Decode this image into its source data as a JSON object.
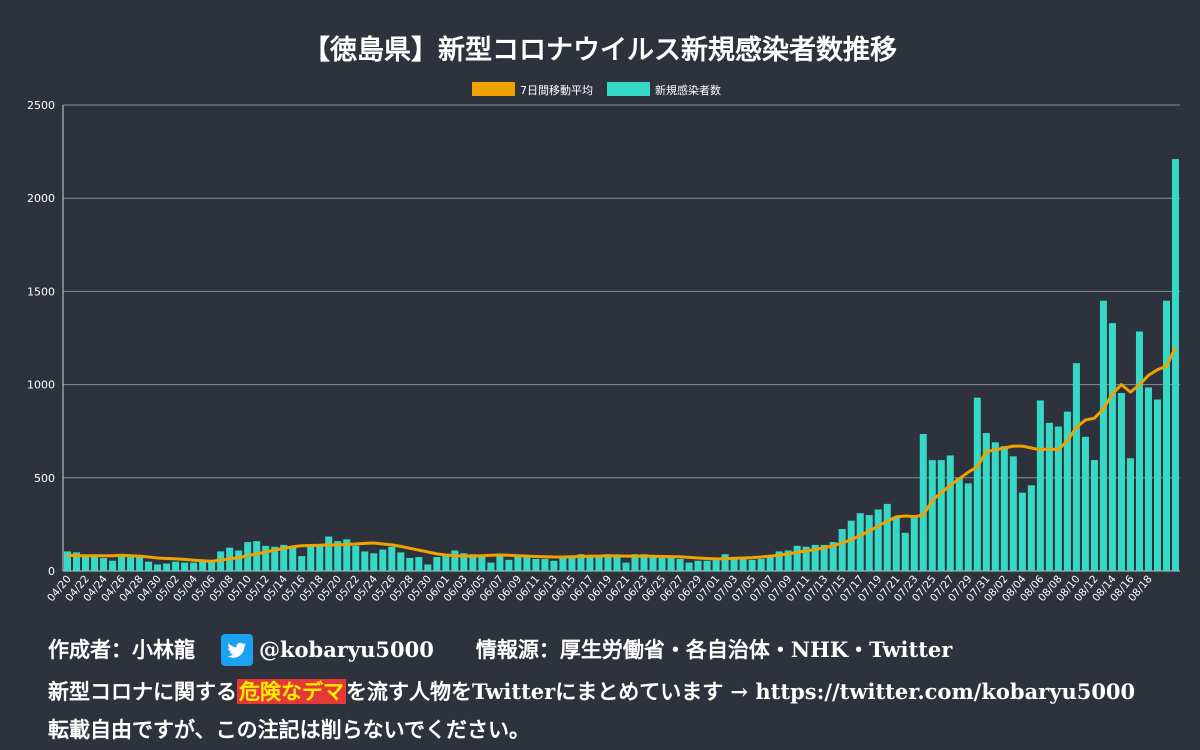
{
  "chart_data": {
    "type": "bar",
    "title": "【徳島県】新型コロナウイルス新規感染者数推移",
    "legend": {
      "position": "top-center",
      "entries": [
        "7日間移動平均",
        "新規感染者数"
      ]
    },
    "ylim": [
      0,
      2500
    ],
    "yticks": [
      0,
      500,
      1000,
      1500,
      2000,
      2500
    ],
    "xtick_labels": [
      "04/20",
      "04/22",
      "04/24",
      "04/26",
      "04/28",
      "04/30",
      "05/02",
      "05/04",
      "05/06",
      "05/08",
      "05/10",
      "05/12",
      "05/14",
      "05/16",
      "05/18",
      "05/20",
      "05/22",
      "05/24",
      "05/26",
      "05/28",
      "05/30",
      "06/01",
      "06/03",
      "06/05",
      "06/07",
      "06/09",
      "06/11",
      "06/13",
      "06/15",
      "06/17",
      "06/19",
      "06/21",
      "06/23",
      "06/25",
      "06/27",
      "06/29",
      "07/01",
      "07/03",
      "07/05",
      "07/07",
      "07/09",
      "07/11",
      "07/13",
      "07/15",
      "07/17",
      "07/19",
      "07/21",
      "07/23",
      "07/25",
      "07/27",
      "07/29",
      "07/31",
      "08/02",
      "08/04",
      "08/06",
      "08/08",
      "08/10",
      "08/12",
      "08/14",
      "08/16",
      "08/18"
    ],
    "series": [
      {
        "name": "新規感染者数",
        "type": "bar",
        "color": "#36d9c6",
        "values": [
          105,
          100,
          80,
          75,
          70,
          55,
          85,
          75,
          80,
          50,
          35,
          40,
          50,
          45,
          45,
          50,
          55,
          105,
          125,
          110,
          155,
          160,
          135,
          130,
          140,
          130,
          80,
          135,
          145,
          185,
          160,
          170,
          135,
          105,
          95,
          115,
          130,
          100,
          70,
          75,
          35,
          75,
          80,
          110,
          95,
          90,
          85,
          45,
          80,
          60,
          75,
          75,
          65,
          65,
          55,
          70,
          80,
          90,
          80,
          75,
          90,
          85,
          45,
          90,
          90,
          80,
          70,
          75,
          65,
          45,
          55,
          55,
          60,
          90,
          75,
          70,
          60,
          65,
          75,
          105,
          110,
          135,
          130,
          140,
          140,
          155,
          225,
          270,
          310,
          300,
          330,
          360,
          285,
          205,
          300,
          735,
          595,
          595,
          620,
          500,
          470,
          930,
          740,
          690,
          670,
          615,
          420,
          460,
          915,
          795,
          775,
          855,
          1115,
          720,
          595,
          1450,
          1330,
          955,
          605,
          1285,
          985,
          920,
          1450,
          2210
        ]
      },
      {
        "name": "7日間移動平均",
        "type": "line",
        "color": "#f0a202",
        "values": [
          85,
          82,
          82,
          82,
          82,
          82,
          84,
          82,
          80,
          75,
          70,
          67,
          65,
          62,
          58,
          55,
          52,
          58,
          65,
          72,
          82,
          92,
          102,
          112,
          122,
          130,
          135,
          137,
          138,
          140,
          140,
          142,
          145,
          148,
          150,
          145,
          140,
          132,
          122,
          112,
          102,
          92,
          86,
          82,
          80,
          80,
          82,
          84,
          86,
          84,
          82,
          80,
          78,
          76,
          75,
          75,
          76,
          78,
          80,
          80,
          81,
          81,
          80,
          80,
          80,
          79,
          78,
          77,
          76,
          73,
          70,
          67,
          65,
          66,
          68,
          70,
          72,
          75,
          80,
          85,
          92,
          100,
          108,
          115,
          125,
          135,
          150,
          168,
          190,
          215,
          240,
          268,
          290,
          295,
          292,
          300,
          380,
          420,
          460,
          495,
          530,
          560,
          640,
          650,
          660,
          670,
          670,
          660,
          650,
          655,
          650,
          700,
          770,
          810,
          820,
          870,
          950,
          1000,
          960,
          1000,
          1050,
          1080,
          1100,
          1200
        ]
      }
    ]
  },
  "footer": {
    "author_label": "作成者：小林龍",
    "twitter_handle": "@kobaryu5000",
    "source": "情報源：厚生労働省・各自治体・NHK・Twitter",
    "line2_before": "新型コロナに関する",
    "line2_highlight": "危険なデマ",
    "line2_after": "を流す人物をTwitterにまとめています → https://twitter.com/kobaryu5000",
    "line3": "転載自由ですが、この注記は削らないでください。"
  },
  "colors": {
    "background": "#2d323c",
    "bar": "#36d9c6",
    "line": "#f0a202",
    "grid": "#8a8f98",
    "text": "#ffffff",
    "highlight_bg": "#e53935",
    "highlight_fg": "#ffee00",
    "twitter": "#1da1f2"
  }
}
